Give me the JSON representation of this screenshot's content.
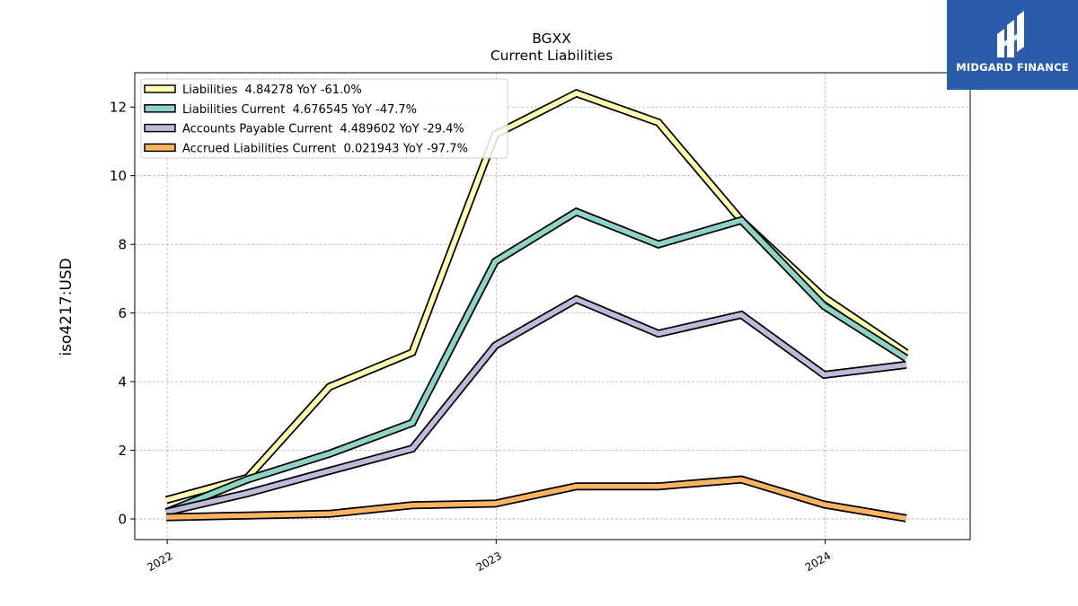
{
  "chart_data": {
    "type": "line",
    "title": "BGXX",
    "subtitle": "Current  Liabilities",
    "ylabel": "iso4217:USD",
    "xlabel": "",
    "x_ticks": [
      "2022",
      "2023",
      "2024"
    ],
    "y_ticks": [
      "0",
      "2",
      "4",
      "6",
      "8",
      "10",
      "12"
    ],
    "xlim": [
      "2021-11-26",
      "2024-06-10"
    ],
    "ylim": [
      -0.6,
      13.0
    ],
    "grid": true,
    "legend_position": "top-left",
    "x": [
      "2021-12-31",
      "2022-03-31",
      "2022-06-30",
      "2022-09-30",
      "2022-12-31",
      "2023-03-31",
      "2023-06-30",
      "2023-09-30",
      "2023-12-31",
      "2024-03-31"
    ],
    "series": [
      {
        "name": "Liabilities",
        "legend_label": "Liabilities  4.84278 YoY -61.0%",
        "color": "#ffffb3",
        "values": [
          0.55,
          1.2,
          3.85,
          4.85,
          11.2,
          12.4,
          11.55,
          8.7,
          6.45,
          4.84
        ]
      },
      {
        "name": "Liabilities Current",
        "legend_label": "Liabilities Current  4.676545 YoY -47.7%",
        "color": "#8dd3c7",
        "values": [
          0.2,
          1.15,
          1.9,
          2.8,
          7.5,
          8.95,
          8.0,
          8.7,
          6.2,
          4.68
        ]
      },
      {
        "name": "Accounts Payable Current",
        "legend_label": "Accounts Payable Current  4.489602 YoY -29.4%",
        "color": "#bebada",
        "values": [
          0.2,
          0.75,
          1.4,
          2.05,
          5.05,
          6.4,
          5.4,
          5.95,
          4.2,
          4.49
        ]
      },
      {
        "name": "Accrued Liabilities Current",
        "legend_label": "Accrued Liabilities Current  0.021943 YoY -97.7%",
        "color": "#fdb462",
        "values": [
          0.05,
          0.1,
          0.15,
          0.4,
          0.45,
          0.95,
          0.95,
          1.15,
          0.42,
          0.02
        ]
      }
    ]
  },
  "logo": {
    "text": "MIDGARD FINANCE",
    "color": "#2a5caa"
  }
}
